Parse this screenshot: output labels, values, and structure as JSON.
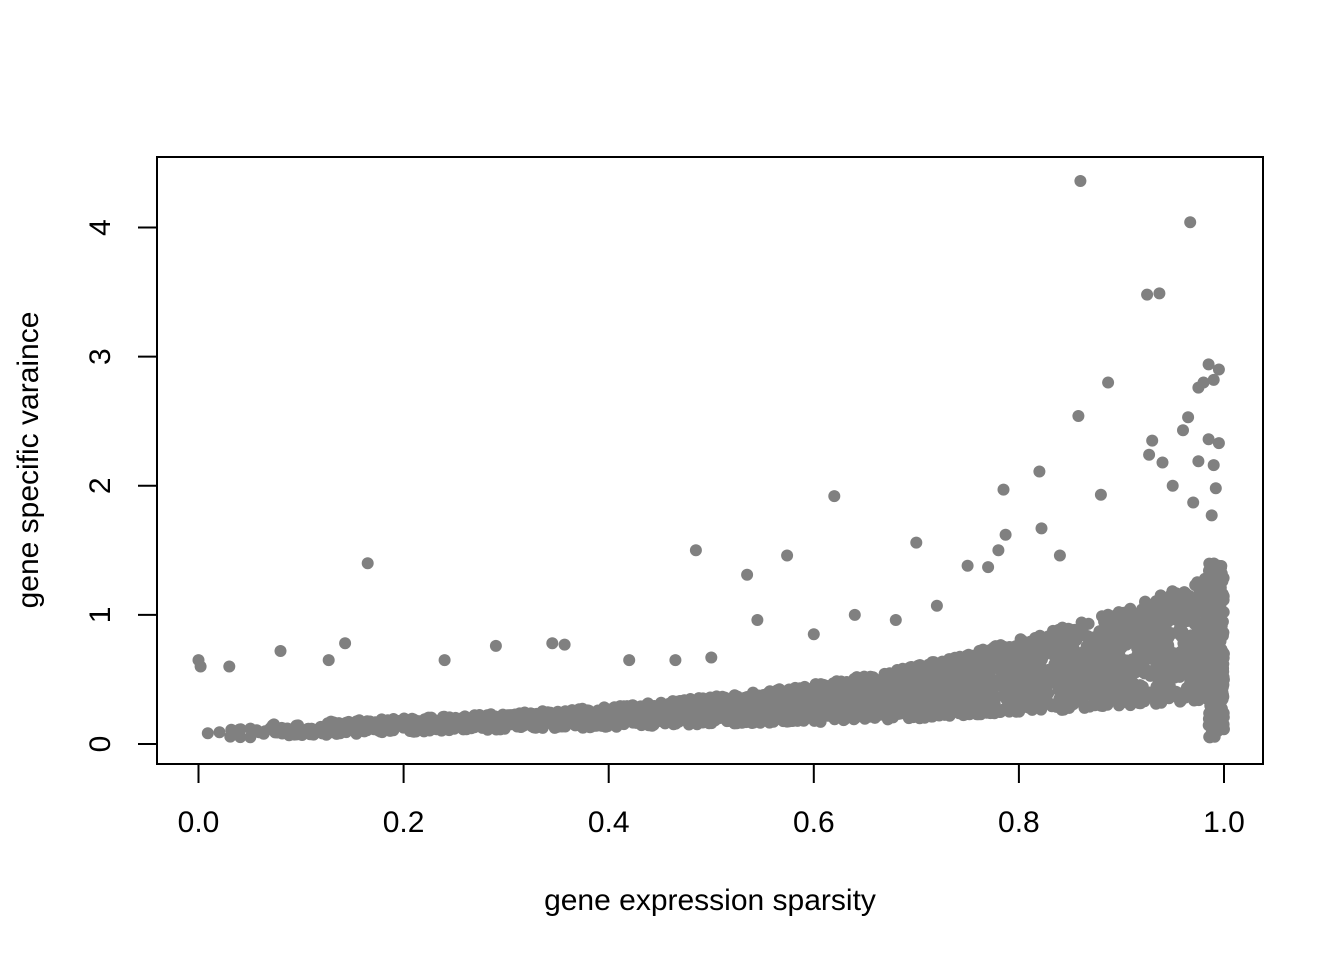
{
  "chart_data": {
    "type": "scatter",
    "title": "",
    "xlabel": "gene expression sparsity",
    "ylabel": "gene specific varaince",
    "xlim": [
      -0.02,
      1.02
    ],
    "ylim": [
      -0.15,
      4.55
    ],
    "x_ticks": [
      0.0,
      0.2,
      0.4,
      0.6,
      0.8,
      1.0
    ],
    "x_tick_labels": [
      "0.0",
      "0.2",
      "0.4",
      "0.6",
      "0.8",
      "1.0"
    ],
    "y_ticks": [
      0,
      1,
      2,
      3,
      4
    ],
    "y_tick_labels": [
      "0",
      "1",
      "2",
      "3",
      "4"
    ],
    "grid": false,
    "legend": "none",
    "point_color": "#808080",
    "point_count_note": "",
    "outliers": [
      {
        "x": 0.0,
        "y": 0.65
      },
      {
        "x": 0.002,
        "y": 0.6
      },
      {
        "x": 0.03,
        "y": 0.6
      },
      {
        "x": 0.08,
        "y": 0.72
      },
      {
        "x": 0.127,
        "y": 0.65
      },
      {
        "x": 0.143,
        "y": 0.78
      },
      {
        "x": 0.165,
        "y": 1.4
      },
      {
        "x": 0.24,
        "y": 0.65
      },
      {
        "x": 0.29,
        "y": 0.76
      },
      {
        "x": 0.345,
        "y": 0.78
      },
      {
        "x": 0.357,
        "y": 0.77
      },
      {
        "x": 0.42,
        "y": 0.65
      },
      {
        "x": 0.465,
        "y": 0.65
      },
      {
        "x": 0.485,
        "y": 1.5
      },
      {
        "x": 0.5,
        "y": 0.67
      },
      {
        "x": 0.535,
        "y": 1.31
      },
      {
        "x": 0.545,
        "y": 0.96
      },
      {
        "x": 0.574,
        "y": 1.46
      },
      {
        "x": 0.6,
        "y": 0.85
      },
      {
        "x": 0.62,
        "y": 1.92
      },
      {
        "x": 0.64,
        "y": 1.0
      },
      {
        "x": 0.68,
        "y": 0.96
      },
      {
        "x": 0.7,
        "y": 1.56
      },
      {
        "x": 0.72,
        "y": 1.07
      },
      {
        "x": 0.75,
        "y": 1.38
      },
      {
        "x": 0.77,
        "y": 1.37
      },
      {
        "x": 0.78,
        "y": 1.5
      },
      {
        "x": 0.785,
        "y": 1.97
      },
      {
        "x": 0.787,
        "y": 1.62
      },
      {
        "x": 0.82,
        "y": 2.11
      },
      {
        "x": 0.822,
        "y": 1.67
      },
      {
        "x": 0.84,
        "y": 1.46
      },
      {
        "x": 0.858,
        "y": 2.54
      },
      {
        "x": 0.86,
        "y": 4.36
      },
      {
        "x": 0.88,
        "y": 1.93
      },
      {
        "x": 0.887,
        "y": 2.8
      },
      {
        "x": 0.925,
        "y": 3.48
      },
      {
        "x": 0.927,
        "y": 2.24
      },
      {
        "x": 0.93,
        "y": 2.35
      },
      {
        "x": 0.937,
        "y": 3.49
      },
      {
        "x": 0.94,
        "y": 2.18
      },
      {
        "x": 0.95,
        "y": 2.0
      },
      {
        "x": 0.96,
        "y": 2.43
      },
      {
        "x": 0.965,
        "y": 2.53
      },
      {
        "x": 0.967,
        "y": 4.04
      },
      {
        "x": 0.975,
        "y": 2.76
      },
      {
        "x": 0.98,
        "y": 2.8
      },
      {
        "x": 0.985,
        "y": 2.94
      },
      {
        "x": 0.99,
        "y": 2.82
      },
      {
        "x": 0.995,
        "y": 2.9
      },
      {
        "x": 0.985,
        "y": 2.36
      },
      {
        "x": 0.995,
        "y": 2.33
      },
      {
        "x": 0.975,
        "y": 2.19
      },
      {
        "x": 0.99,
        "y": 2.16
      },
      {
        "x": 0.992,
        "y": 1.98
      },
      {
        "x": 0.97,
        "y": 1.87
      },
      {
        "x": 0.988,
        "y": 1.77
      }
    ],
    "trend": [
      {
        "x": 0.0,
        "y": 0.08
      },
      {
        "x": 0.2,
        "y": 0.14
      },
      {
        "x": 0.4,
        "y": 0.2
      },
      {
        "x": 0.6,
        "y": 0.3
      },
      {
        "x": 0.7,
        "y": 0.38
      },
      {
        "x": 0.8,
        "y": 0.5
      },
      {
        "x": 0.9,
        "y": 0.62
      },
      {
        "x": 1.0,
        "y": 0.8
      }
    ]
  }
}
